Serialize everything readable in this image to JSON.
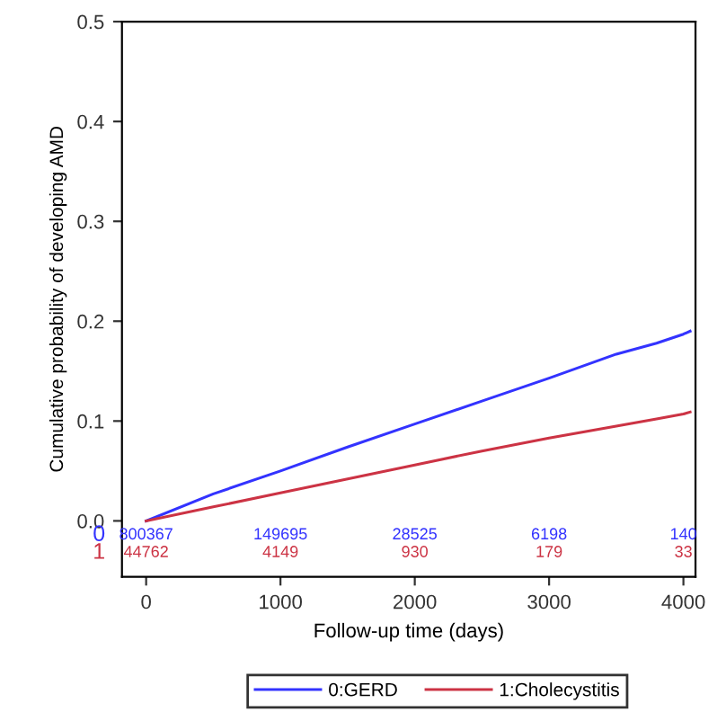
{
  "chart_data": {
    "type": "line",
    "xlabel": "Follow-up time (days)",
    "ylabel": "Cumulative probability of developing AMD",
    "x": [
      0,
      500,
      1000,
      1500,
      2000,
      2500,
      3000,
      3500,
      3800,
      4000,
      4050
    ],
    "series": [
      {
        "name": "0:GERD",
        "color": "#3333ff",
        "values": [
          0,
          0.027,
          0.05,
          0.074,
          0.097,
          0.12,
          0.143,
          0.167,
          0.178,
          0.187,
          0.19
        ]
      },
      {
        "name": "1:Cholecystitis",
        "color": "#cc3344",
        "values": [
          0,
          0.014,
          0.028,
          0.042,
          0.056,
          0.07,
          0.083,
          0.095,
          0.102,
          0.107,
          0.109
        ]
      }
    ],
    "xlim": [
      -180,
      4090
    ],
    "ylim": [
      -0.056,
      0.5
    ],
    "xticks": [
      0,
      1000,
      2000,
      3000,
      4000
    ],
    "yticks": [
      {
        "value": 0,
        "label": "0.0"
      },
      0.1,
      0.2,
      0.3,
      0.4,
      0.5
    ],
    "annotations": [
      "0",
      "800367",
      "149695",
      "28525",
      "6198",
      "140",
      "1",
      "44762",
      "4149",
      "930",
      "179",
      "33"
    ],
    "legend": "bottom",
    "grid": false,
    "line_style": "solid",
    "marker": "none"
  }
}
